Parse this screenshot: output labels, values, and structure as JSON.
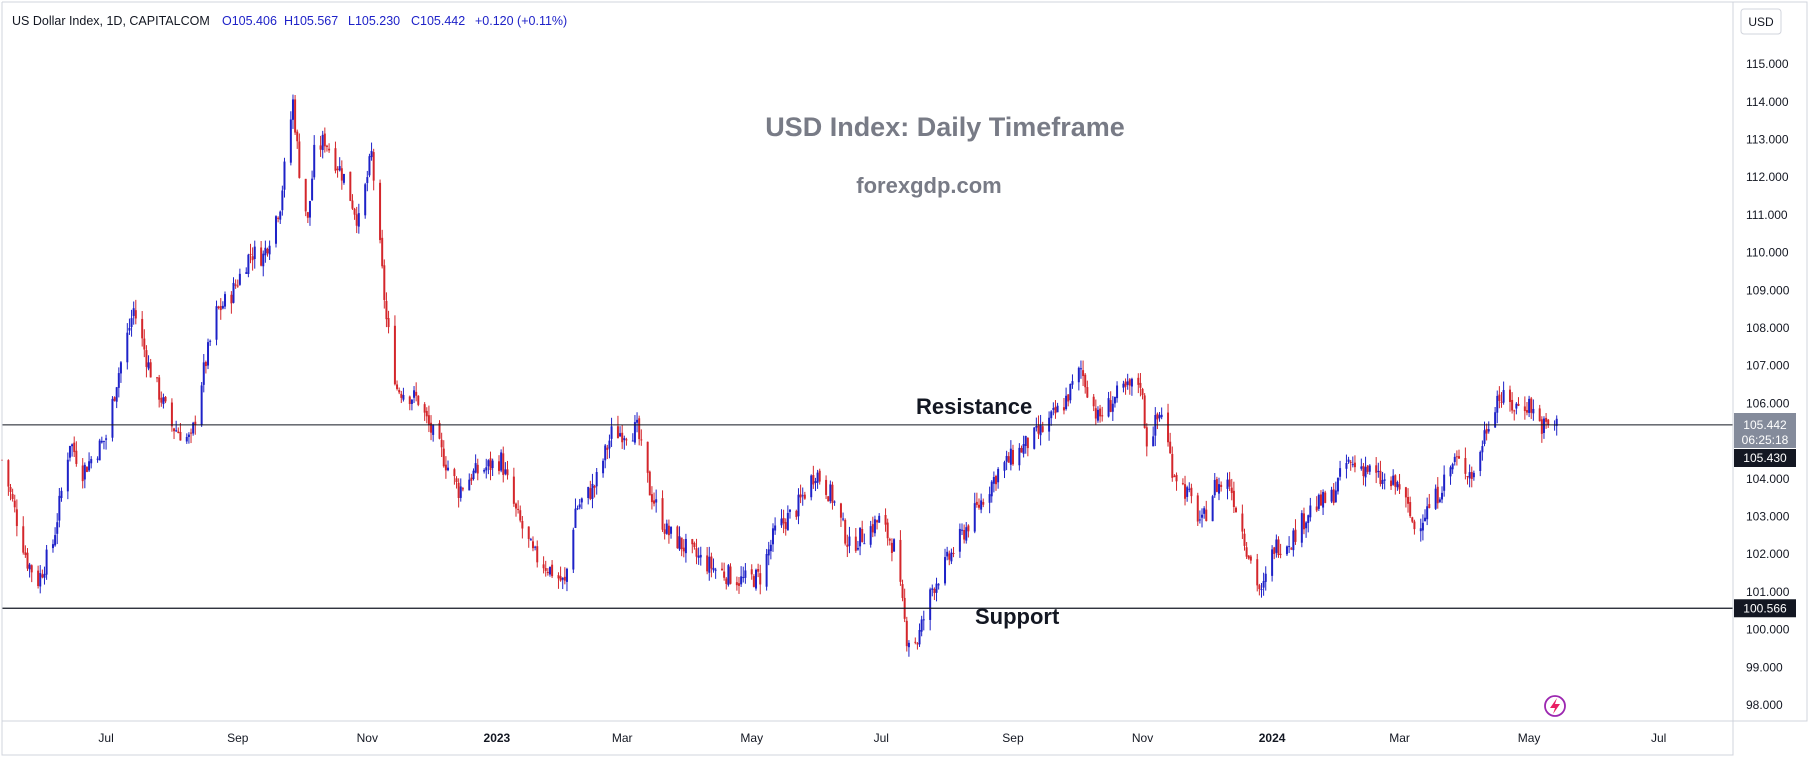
{
  "header": {
    "symbol": "US Dollar Index, 1D, CAPITALCOM",
    "open": "O105.406",
    "high": "H105.567",
    "low": "L105.230",
    "close": "C105.442",
    "change": "+0.120 (+0.11%)"
  },
  "currency_badge": "USD",
  "watermark": {
    "title": "USD Index: Daily Timeframe",
    "site": "forexgdp.com"
  },
  "price_tags": {
    "last": "105.442",
    "countdown": "06:25:18",
    "resistance": "105.430",
    "support": "100.566"
  },
  "colors": {
    "up": "#1e22c8",
    "down": "#d4262b",
    "last_tag_bg": "#848b9b",
    "line_tag_bg": "#131722",
    "grid_border": "#d1d4dc",
    "watermark": "#787b86",
    "annotation": "#131722",
    "logo": "#9c27b0"
  },
  "icons": {
    "logo": "lightning-bolt-icon"
  },
  "chart_data": {
    "type": "candlestick",
    "title": "USD Index: Daily Timeframe",
    "subtitle": "forexgdp.com",
    "ylim": [
      97.7,
      115.6
    ],
    "y_ticks": [
      "98.000",
      "99.000",
      "100.000",
      "101.000",
      "102.000",
      "103.000",
      "104.000",
      "105.000",
      "106.000",
      "107.000",
      "108.000",
      "109.000",
      "110.000",
      "111.000",
      "112.000",
      "113.000",
      "114.000",
      "115.000"
    ],
    "x_ticks": [
      "Jul",
      "Sep",
      "Nov",
      "2023",
      "Mar",
      "May",
      "Jul",
      "Sep",
      "Nov",
      "2024",
      "Mar",
      "May",
      "Jul"
    ],
    "x_tick_dates": [
      "2022-07-01",
      "2022-09-01",
      "2022-11-01",
      "2023-01-01",
      "2023-03-01",
      "2023-05-01",
      "2023-07-01",
      "2023-09-01",
      "2023-11-01",
      "2024-01-01",
      "2024-03-01",
      "2024-05-01",
      "2024-07-01"
    ],
    "x_range": [
      "2022-05-13",
      "2024-08-05"
    ],
    "horizontal_lines": [
      {
        "label": "Resistance",
        "value": 105.43
      },
      {
        "label": "Support",
        "value": 100.566
      }
    ],
    "price_path": [
      [
        "2022-05-13",
        104.5
      ],
      [
        "2022-05-25",
        101.8
      ],
      [
        "2022-05-30",
        101.3
      ],
      [
        "2022-06-06",
        102.3
      ],
      [
        "2022-06-14",
        105.0
      ],
      [
        "2022-06-20",
        104.2
      ],
      [
        "2022-07-01",
        105.1
      ],
      [
        "2022-07-06",
        106.6
      ],
      [
        "2022-07-14",
        108.5
      ],
      [
        "2022-07-21",
        107.0
      ],
      [
        "2022-08-01",
        105.4
      ],
      [
        "2022-08-10",
        105.0
      ],
      [
        "2022-08-15",
        106.6
      ],
      [
        "2022-08-22",
        108.4
      ],
      [
        "2022-08-29",
        108.9
      ],
      [
        "2022-09-07",
        110.0
      ],
      [
        "2022-09-13",
        109.9
      ],
      [
        "2022-09-21",
        111.3
      ],
      [
        "2022-09-27",
        114.0
      ],
      [
        "2022-09-30",
        112.2
      ],
      [
        "2022-10-04",
        110.8
      ],
      [
        "2022-10-07",
        112.6
      ],
      [
        "2022-10-12",
        113.0
      ],
      [
        "2022-10-21",
        112.0
      ],
      [
        "2022-10-28",
        110.8
      ],
      [
        "2022-11-03",
        112.6
      ],
      [
        "2022-11-10",
        108.2
      ],
      [
        "2022-11-15",
        106.4
      ],
      [
        "2022-11-25",
        106.1
      ],
      [
        "2022-11-30",
        105.4
      ],
      [
        "2022-12-05",
        104.8
      ],
      [
        "2022-12-14",
        103.7
      ],
      [
        "2022-12-20",
        104.1
      ],
      [
        "2023-01-03",
        104.5
      ],
      [
        "2023-01-10",
        103.1
      ],
      [
        "2023-01-18",
        102.0
      ],
      [
        "2023-01-26",
        101.6
      ],
      [
        "2023-02-02",
        101.2
      ],
      [
        "2023-02-07",
        103.2
      ],
      [
        "2023-02-16",
        103.8
      ],
      [
        "2023-02-24",
        105.2
      ],
      [
        "2023-03-08",
        105.3
      ],
      [
        "2023-03-14",
        103.7
      ],
      [
        "2023-03-22",
        102.6
      ],
      [
        "2023-04-03",
        102.0
      ],
      [
        "2023-04-14",
        101.6
      ],
      [
        "2023-04-26",
        101.3
      ],
      [
        "2023-05-05",
        101.4
      ],
      [
        "2023-05-12",
        102.6
      ],
      [
        "2023-05-22",
        103.2
      ],
      [
        "2023-05-31",
        104.2
      ],
      [
        "2023-06-08",
        103.5
      ],
      [
        "2023-06-16",
        102.2
      ],
      [
        "2023-06-30",
        102.9
      ],
      [
        "2023-07-07",
        102.2
      ],
      [
        "2023-07-13",
        99.8
      ],
      [
        "2023-07-18",
        99.7
      ],
      [
        "2023-07-25",
        101.1
      ],
      [
        "2023-08-03",
        102.0
      ],
      [
        "2023-08-15",
        103.2
      ],
      [
        "2023-08-25",
        104.2
      ],
      [
        "2023-09-05",
        104.8
      ],
      [
        "2023-09-15",
        105.3
      ],
      [
        "2023-09-25",
        106.0
      ],
      [
        "2023-10-03",
        106.9
      ],
      [
        "2023-10-11",
        105.6
      ],
      [
        "2023-10-20",
        106.2
      ],
      [
        "2023-10-31",
        106.6
      ],
      [
        "2023-11-03",
        105.0
      ],
      [
        "2023-11-10",
        105.8
      ],
      [
        "2023-11-15",
        104.3
      ],
      [
        "2023-11-24",
        103.4
      ],
      [
        "2023-11-29",
        102.8
      ],
      [
        "2023-12-05",
        103.8
      ],
      [
        "2023-12-12",
        103.9
      ],
      [
        "2023-12-20",
        102.2
      ],
      [
        "2023-12-27",
        100.9
      ],
      [
        "2024-01-02",
        102.2
      ],
      [
        "2024-01-10",
        102.4
      ],
      [
        "2024-01-19",
        103.2
      ],
      [
        "2024-01-29",
        103.5
      ],
      [
        "2024-02-05",
        104.4
      ],
      [
        "2024-02-14",
        104.3
      ],
      [
        "2024-02-22",
        103.9
      ],
      [
        "2024-03-01",
        103.8
      ],
      [
        "2024-03-08",
        102.7
      ],
      [
        "2024-03-18",
        103.5
      ],
      [
        "2024-03-27",
        104.5
      ],
      [
        "2024-04-05",
        104.1
      ],
      [
        "2024-04-10",
        105.2
      ],
      [
        "2024-04-16",
        106.2
      ],
      [
        "2024-04-24",
        105.9
      ],
      [
        "2024-05-01",
        106.0
      ],
      [
        "2024-05-07",
        105.4
      ],
      [
        "2024-05-14",
        105.44
      ]
    ],
    "last": {
      "open": 105.406,
      "high": 105.567,
      "low": 105.23,
      "close": 105.442
    },
    "annotations": [
      "Resistance",
      "Support"
    ]
  }
}
